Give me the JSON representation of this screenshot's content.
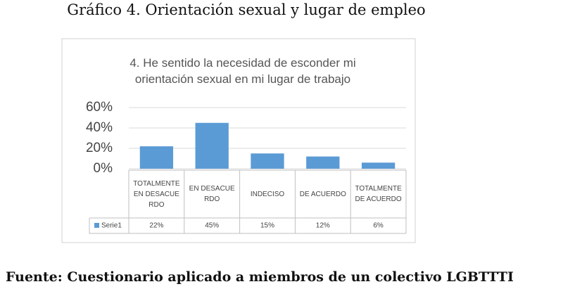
{
  "title": "Gráfico 4. Orientación sexual y lugar de empleo",
  "chart_data": {
    "type": "bar",
    "title": "4. He sentido la necesidad de esconder mi orientación sexual en mi lugar de trabajo",
    "categories": [
      "TOTALMENTE EN DESACUERDO",
      "EN DESACUERDO",
      "INDECISO",
      "DE ACUERDO",
      "TOTALMENTE DE ACUERDO"
    ],
    "series": [
      {
        "name": "Serie1",
        "color": "#5b9bd5",
        "values": [
          22,
          45,
          15,
          12,
          6
        ],
        "value_labels": [
          "22%",
          "45%",
          "15%",
          "12%",
          "6%"
        ]
      }
    ],
    "ylim": [
      0,
      60
    ],
    "yticks": [
      {
        "value": 0,
        "label": "0%"
      },
      {
        "value": 20,
        "label": "20%"
      },
      {
        "value": 40,
        "label": "40%"
      },
      {
        "value": 60,
        "label": "60%"
      }
    ],
    "grid": true
  },
  "source": "Fuente: Cuestionario aplicado a miembros de un colectivo LGBTTTI"
}
